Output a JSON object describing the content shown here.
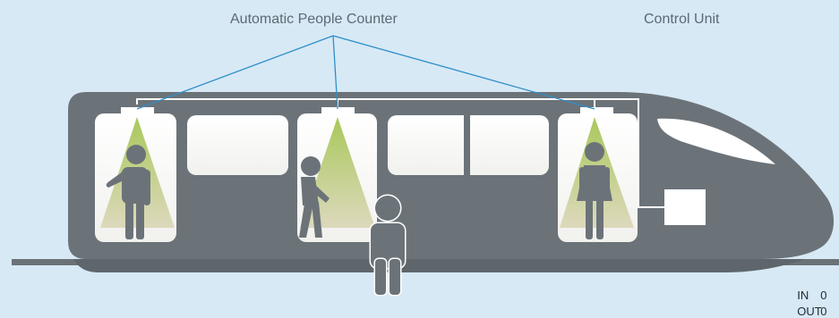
{
  "labels": {
    "people_counter": "Automatic People Counter",
    "control_unit": "Control Unit"
  },
  "counter": {
    "in_label": "IN",
    "in_value": "0",
    "out_label": "OUT",
    "out_value": "0"
  },
  "colors": {
    "background": "#d7e9f5",
    "train_body": "#6b7379",
    "window": "#ffffff",
    "pointer_line": "#2f8fc9",
    "beam_top": "#a9c85a",
    "beam_bottom": "#ddd9bd",
    "person": "#6b7379"
  },
  "icons": [
    "train",
    "sensor",
    "person",
    "control-unit-box"
  ]
}
